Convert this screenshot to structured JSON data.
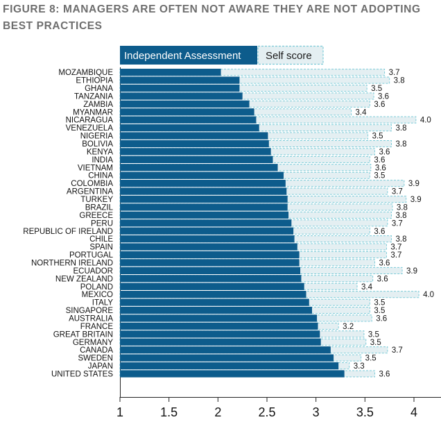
{
  "chart_data": {
    "type": "bar",
    "orientation": "horizontal",
    "title": "FIGURE 8: MANAGERS ARE OFTEN NOT AWARE THEY ARE NOT ADOPTING BEST PRACTICES",
    "legend_position": "top",
    "xlim": [
      1,
      4.2
    ],
    "xticks": [
      "1",
      "1.5",
      "2",
      "2.5",
      "3",
      "3.5",
      "4"
    ],
    "xtick_values": [
      1,
      1.5,
      2,
      2.5,
      3,
      3.5,
      4
    ],
    "categories": [
      "MOZAMBIQUE",
      "ETHIOPIA",
      "GHANA",
      "TANZANIA",
      "ZAMBIA",
      "MYANMAR",
      "NICARAGUA",
      "VENEZUELA",
      "NIGERIA",
      "BOLIVIA",
      "KENYA",
      "INDIA",
      "VIETNAM",
      "CHINA",
      "COLOMBIA",
      "ARGENTINA",
      "TURKEY",
      "BRAZIL",
      "GREECE",
      "PERU",
      "REPUBLIC OF IRELAND",
      "CHILE",
      "SPAIN",
      "PORTUGAL",
      "NORTHERN IRELAND",
      "ECUADOR",
      "NEW ZEALAND",
      "POLAND",
      "MEXICO",
      "ITALY",
      "SINGAPORE",
      "AUSTRALIA",
      "FRANCE",
      "GREAT BRITAIN",
      "GERMANY",
      "CANADA",
      "SWEDEN",
      "JAPAN",
      "UNITED STATES"
    ],
    "series": [
      {
        "name": "Independent Assessment",
        "color": "#0d5c8c",
        "values": [
          2.03,
          2.22,
          2.22,
          2.25,
          2.32,
          2.37,
          2.39,
          2.42,
          2.51,
          2.52,
          2.54,
          2.56,
          2.61,
          2.67,
          2.69,
          2.7,
          2.71,
          2.71,
          2.72,
          2.75,
          2.77,
          2.78,
          2.81,
          2.83,
          2.83,
          2.84,
          2.85,
          2.88,
          2.9,
          2.93,
          2.96,
          3.01,
          3.02,
          3.04,
          3.05,
          3.15,
          3.18,
          3.23,
          3.29
        ]
      },
      {
        "name": "Self score",
        "color": "#e4eff2",
        "border_color": "#7ccbd8",
        "values": [
          3.7,
          3.75,
          3.52,
          3.59,
          3.55,
          3.36,
          4.02,
          3.77,
          3.53,
          3.77,
          3.6,
          3.55,
          3.56,
          3.55,
          3.9,
          3.73,
          3.92,
          3.78,
          3.77,
          3.73,
          3.55,
          3.77,
          3.72,
          3.72,
          3.6,
          3.88,
          3.58,
          3.42,
          4.05,
          3.55,
          3.55,
          3.57,
          3.23,
          3.49,
          3.51,
          3.73,
          3.46,
          3.34,
          3.6
        ],
        "labels": [
          "3.7",
          "3.8",
          "3.5",
          "3.6",
          "3.6",
          "3.4",
          "4.0",
          "3.8",
          "3.5",
          "3.8",
          "3.6",
          "3.6",
          "3.6",
          "3.5",
          "3.9",
          "3.7",
          "3.9",
          "3.8",
          "3.8",
          "3.7",
          "3.6",
          "3.8",
          "3.7",
          "3.7",
          "3.6",
          "3.9",
          "3.6",
          "3.4",
          "4.0",
          "3.5",
          "3.5",
          "3.6",
          "3.2",
          "3.5",
          "3.5",
          "3.7",
          "3.5",
          "3.3",
          "3.6"
        ]
      }
    ]
  }
}
